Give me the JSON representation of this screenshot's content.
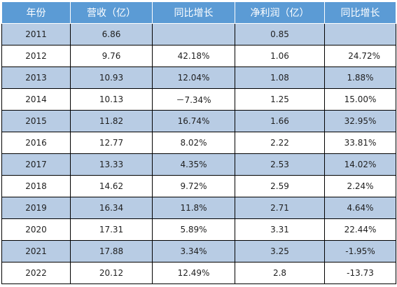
{
  "table": {
    "headers": [
      "年份",
      "营收（亿）",
      "同比增长",
      "净利润（亿）",
      "同比增长"
    ],
    "rows": [
      [
        "2011",
        "6.86",
        "",
        "0.85",
        ""
      ],
      [
        "2012",
        "9.76",
        "42.18%",
        "1.06",
        "24.72%"
      ],
      [
        "2013",
        "10.93",
        "12.04%",
        "1.08",
        "1.88%"
      ],
      [
        "2014",
        "10.13",
        "－7.34%",
        "1.25",
        "15.00%"
      ],
      [
        "2015",
        "11.82",
        "16.74%",
        "1.66",
        "32.95%"
      ],
      [
        "2016",
        "12.77",
        "8.02%",
        "2.22",
        "33.81%"
      ],
      [
        "2017",
        "13.33",
        "4.35%",
        "2.53",
        "14.02%"
      ],
      [
        "2018",
        "14.62",
        "9.72%",
        "2.59",
        "2.24%"
      ],
      [
        "2019",
        "16.34",
        "11.8%",
        "2.71",
        "4.64%"
      ],
      [
        "2020",
        "17.31",
        "5.89%",
        "3.31",
        "22.44%"
      ],
      [
        "2021",
        "17.88",
        "3.34%",
        "3.25",
        "-1.95%"
      ],
      [
        "2022",
        "20.12",
        "12.49%",
        "2.8",
        "-13.73"
      ]
    ]
  },
  "colors": {
    "header_bg": "#5b9bd5",
    "header_text": "#ffffff",
    "band_row": "#b8cce4",
    "plain_row": "#ffffff"
  }
}
